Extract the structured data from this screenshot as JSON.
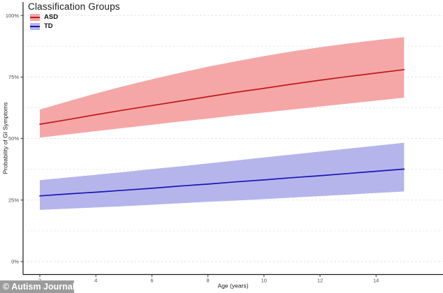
{
  "watermark": {
    "text": "© Autism Journal",
    "bg_color": "#9b9b9b",
    "text_color": "#ffffff"
  },
  "legend": {
    "title": "Classification Groups",
    "items": [
      {
        "label": "ASD",
        "line_color": "#c01818",
        "band_color": "#f5a7a7"
      },
      {
        "label": "TD",
        "line_color": "#1717b2",
        "band_color": "#b5b5ec"
      }
    ]
  },
  "chart_data": {
    "type": "line",
    "title": "",
    "legend_title": "Classification Groups",
    "xlabel": "Age (years)",
    "ylabel": "Probability of GI Symptoms",
    "x_ticks": [
      2,
      4,
      6,
      8,
      10,
      12,
      14
    ],
    "x_tick_labels": [
      "2",
      "4",
      "6",
      "8",
      "10",
      "12",
      "14"
    ],
    "y_ticks": [
      0,
      25,
      50,
      75,
      100
    ],
    "y_tick_labels": [
      "0%",
      "25%",
      "50%",
      "75%",
      "100%"
    ],
    "y_minor_gridlines": [
      12.5,
      37.5,
      62.5,
      87.5
    ],
    "x_range": [
      1.4,
      16.4
    ],
    "ylim_pct": [
      -5,
      105
    ],
    "grid": "horizontal-dashed",
    "legend_position": "top-left-inside",
    "x": [
      2,
      3,
      4,
      5,
      6,
      7,
      8,
      9,
      10,
      11,
      12,
      13,
      14,
      15
    ],
    "series": [
      {
        "name": "ASD",
        "color": "#c01818",
        "band_color": "#f5a7a7",
        "values": [
          55.8,
          57.7,
          59.7,
          61.6,
          63.4,
          65.2,
          67.0,
          68.8,
          70.4,
          72.1,
          73.7,
          75.2,
          76.6,
          78.0
        ],
        "ci_lower": [
          50.4,
          51.7,
          53.0,
          54.3,
          55.6,
          56.9,
          58.1,
          59.4,
          60.6,
          61.8,
          63.0,
          64.2,
          65.4,
          66.6
        ],
        "ci_upper": [
          61.8,
          65.1,
          68.3,
          71.3,
          74.1,
          76.7,
          79.2,
          81.4,
          83.5,
          85.4,
          87.1,
          88.6,
          90.0,
          91.2
        ]
      },
      {
        "name": "TD",
        "color": "#1717b2",
        "band_color": "#b5b5ec",
        "values": [
          26.7,
          27.5,
          28.2,
          29.0,
          29.8,
          30.7,
          31.5,
          32.4,
          33.2,
          34.1,
          34.9,
          35.8,
          36.7,
          37.6
        ],
        "ci_lower": [
          21.0,
          21.5,
          22.0,
          22.5,
          23.1,
          23.7,
          24.3,
          24.8,
          25.4,
          26.0,
          26.6,
          27.2,
          27.9,
          28.5
        ],
        "ci_upper": [
          33.1,
          34.2,
          35.3,
          36.4,
          37.6,
          38.7,
          39.9,
          41.1,
          42.3,
          43.5,
          44.7,
          45.9,
          47.1,
          48.3
        ]
      }
    ]
  }
}
